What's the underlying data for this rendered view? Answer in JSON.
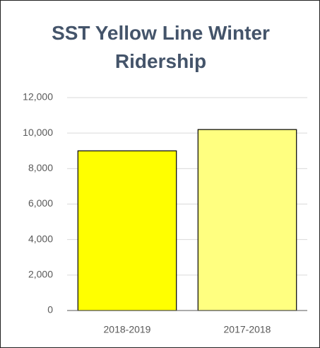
{
  "chart_data": {
    "type": "bar",
    "title": "SST Yellow Line Winter Ridership",
    "categories": [
      "2018-2019",
      "2017-2018"
    ],
    "values": [
      9000,
      10200
    ],
    "colors": [
      "#ffff00",
      "#ffff80"
    ],
    "ylim": [
      0,
      12000
    ],
    "yticks": [
      0,
      {
        "value": 2000,
        "label": "2,000"
      },
      {
        "value": 4000,
        "label": "4,000"
      },
      {
        "value": 6000,
        "label": "6,000"
      },
      {
        "value": 8000,
        "label": "8,000"
      },
      {
        "value": 10000,
        "label": "10,000"
      },
      {
        "value": 12000,
        "label": "12,000"
      }
    ],
    "grid": true
  }
}
